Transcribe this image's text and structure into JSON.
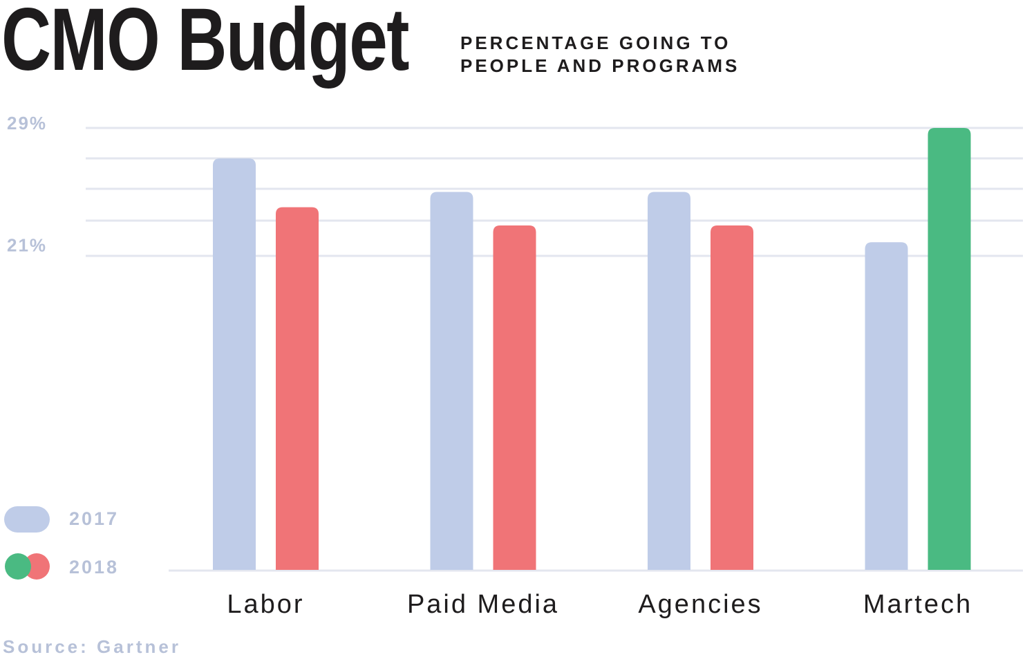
{
  "header": {
    "title": "CMO Budget",
    "subtitle_lines": [
      "PERCENTAGE GOING TO",
      "PEOPLE AND PROGRAMS"
    ]
  },
  "legend": {
    "items": [
      {
        "label": "2017",
        "icon": "light-blue-pill"
      },
      {
        "label": "2018",
        "icon": "green-red-dots"
      }
    ]
  },
  "footer": {
    "source": "Source: Gartner"
  },
  "colors": {
    "series_2017": "#bfcce8",
    "series_2018": "#f07477",
    "martech_2018": "#4aba82",
    "grid": "#e3e6ef",
    "axis_label": "#b7c1d8",
    "category_label": "#1e1c1d"
  },
  "chart_data": {
    "type": "bar",
    "title": "CMO Budget",
    "subtitle": "PERCENTAGE GOING TO PEOPLE AND PROGRAMS",
    "categories": [
      "Labor",
      "Paid Media",
      "Agencies",
      "Martech"
    ],
    "series": [
      {
        "name": "2017",
        "values": [
          27,
          24.8,
          24.8,
          21.5
        ]
      },
      {
        "name": "2018",
        "values": [
          23.8,
          22.6,
          22.6,
          29
        ],
        "highlight_index": 3
      }
    ],
    "ylim": [
      0,
      29
    ],
    "y_tick_labels": [
      {
        "value": 29,
        "label": "29%"
      },
      {
        "value": 21,
        "label": "21%"
      }
    ],
    "grid_values": [
      29,
      27,
      25,
      22.9,
      20.6
    ],
    "grid": true,
    "legend_position": "bottom-left",
    "xlabel": "",
    "ylabel": ""
  }
}
